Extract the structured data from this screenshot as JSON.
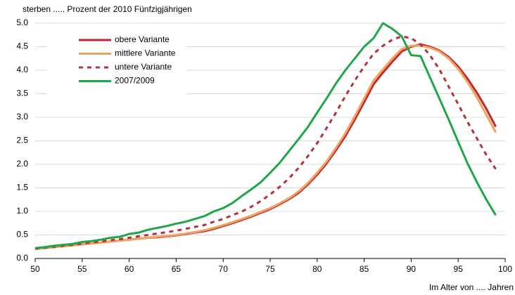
{
  "chart_data": {
    "type": "line",
    "title": "sterben ..... Prozent der 2010 Fünfzigjährigen",
    "x_label": "Im Alter von .... Jahren",
    "x": [
      50,
      51,
      52,
      53,
      54,
      55,
      56,
      57,
      58,
      59,
      60,
      61,
      62,
      63,
      64,
      65,
      66,
      67,
      68,
      69,
      70,
      71,
      72,
      73,
      74,
      75,
      76,
      77,
      78,
      79,
      80,
      81,
      82,
      83,
      84,
      85,
      86,
      87,
      88,
      89,
      90,
      91,
      92,
      93,
      94,
      95,
      96,
      97,
      98,
      99
    ],
    "series": [
      {
        "name": "obere Variante",
        "color": "#c0272d",
        "style": "solid",
        "values": [
          0.2,
          0.22,
          0.24,
          0.26,
          0.28,
          0.3,
          0.32,
          0.34,
          0.36,
          0.38,
          0.4,
          0.42,
          0.44,
          0.45,
          0.47,
          0.49,
          0.52,
          0.55,
          0.58,
          0.63,
          0.69,
          0.75,
          0.82,
          0.89,
          0.97,
          1.05,
          1.15,
          1.26,
          1.39,
          1.57,
          1.78,
          2.02,
          2.3,
          2.6,
          2.95,
          3.32,
          3.7,
          3.95,
          4.18,
          4.4,
          4.5,
          4.55,
          4.5,
          4.42,
          4.28,
          4.08,
          3.82,
          3.52,
          3.18,
          2.8
        ]
      },
      {
        "name": "mittlere Variante",
        "color": "#f0a35e",
        "style": "solid",
        "values": [
          0.2,
          0.22,
          0.24,
          0.26,
          0.28,
          0.3,
          0.32,
          0.34,
          0.36,
          0.38,
          0.4,
          0.42,
          0.44,
          0.46,
          0.48,
          0.5,
          0.53,
          0.56,
          0.6,
          0.65,
          0.71,
          0.77,
          0.84,
          0.91,
          0.99,
          1.07,
          1.17,
          1.28,
          1.42,
          1.6,
          1.82,
          2.06,
          2.35,
          2.66,
          3.02,
          3.4,
          3.78,
          4.02,
          4.25,
          4.45,
          4.52,
          4.52,
          4.48,
          4.4,
          4.25,
          4.03,
          3.75,
          3.42,
          3.05,
          2.68
        ]
      },
      {
        "name": "untere Variante",
        "color": "#b5323a",
        "style": "dotted",
        "values": [
          0.21,
          0.23,
          0.25,
          0.27,
          0.29,
          0.32,
          0.34,
          0.36,
          0.39,
          0.41,
          0.44,
          0.47,
          0.5,
          0.53,
          0.56,
          0.59,
          0.63,
          0.67,
          0.71,
          0.78,
          0.84,
          0.92,
          1.0,
          1.1,
          1.22,
          1.36,
          1.52,
          1.7,
          1.92,
          2.17,
          2.45,
          2.77,
          3.1,
          3.45,
          3.78,
          4.08,
          4.35,
          4.52,
          4.65,
          4.72,
          4.68,
          4.55,
          4.32,
          4.02,
          3.65,
          3.28,
          2.9,
          2.55,
          2.2,
          1.9
        ]
      },
      {
        "name": "2007/2009",
        "color": "#1ea64a",
        "style": "solid",
        "values": [
          0.22,
          0.24,
          0.27,
          0.29,
          0.31,
          0.35,
          0.37,
          0.4,
          0.44,
          0.46,
          0.52,
          0.55,
          0.61,
          0.65,
          0.69,
          0.74,
          0.78,
          0.84,
          0.9,
          1.0,
          1.07,
          1.18,
          1.33,
          1.47,
          1.62,
          1.82,
          2.03,
          2.28,
          2.53,
          2.79,
          3.1,
          3.4,
          3.72,
          4.0,
          4.25,
          4.5,
          4.68,
          5.0,
          4.88,
          4.72,
          4.32,
          4.3,
          3.85,
          3.4,
          2.95,
          2.48,
          2.02,
          1.62,
          1.25,
          0.92
        ]
      }
    ],
    "xlim": [
      50,
      100
    ],
    "xticks": [
      50,
      55,
      60,
      65,
      70,
      75,
      80,
      85,
      90,
      95,
      100
    ],
    "ylim": [
      0,
      5
    ],
    "yticks": [
      {
        "value": 0,
        "label": "0.0"
      },
      0.5,
      {
        "value": 1,
        "label": "1.0"
      },
      1.5,
      {
        "value": 2,
        "label": "2.0"
      },
      2.5,
      {
        "value": 3,
        "label": "3.0"
      },
      3.5,
      {
        "value": 4,
        "label": "4.0"
      },
      4.5,
      {
        "value": 5,
        "label": "5.0"
      }
    ],
    "grid": true,
    "legend": "upper left"
  }
}
